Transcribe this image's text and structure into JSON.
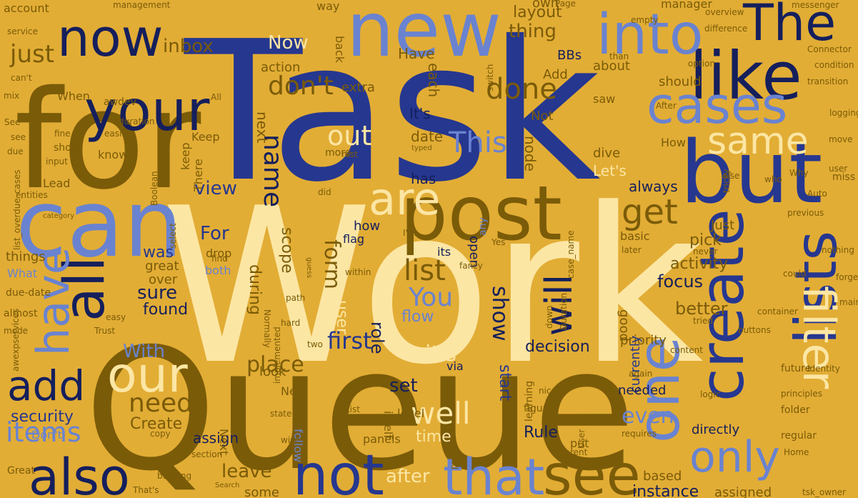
{
  "palette": {
    "background": "#E2AD35",
    "navy": "#26378F",
    "dark_navy": "#151F5C",
    "olive": "#7A5B08",
    "light_blue": "#6A83D0",
    "cream": "#FCE6A4",
    "tan": "#C58F28",
    "faint": "#C99A31"
  },
  "words": [
    {
      "text": "Task",
      "color": "navy"
    },
    {
      "text": "Work",
      "color": "cream"
    },
    {
      "text": "Queue",
      "color": "olive"
    },
    {
      "text": "for",
      "color": "olive"
    },
    {
      "text": "can",
      "color": "light_blue"
    },
    {
      "text": "new",
      "color": "light_blue"
    },
    {
      "text": "your",
      "color": "dark_navy"
    },
    {
      "text": "now",
      "color": "dark_navy"
    },
    {
      "text": "post",
      "color": "olive"
    },
    {
      "text": "but",
      "color": "navy"
    },
    {
      "text": "like",
      "color": "dark_navy"
    },
    {
      "text": "The",
      "color": "dark_navy"
    },
    {
      "text": "into",
      "color": "light_blue"
    },
    {
      "text": "cases",
      "color": "light_blue"
    },
    {
      "text": "all",
      "color": "dark_navy"
    },
    {
      "text": "create",
      "color": "navy"
    },
    {
      "text": "lists",
      "color": "navy"
    },
    {
      "text": "one",
      "color": "light_blue"
    },
    {
      "text": "filter",
      "color": "cream"
    },
    {
      "text": "only",
      "color": "light_blue"
    },
    {
      "text": "see",
      "color": "olive"
    },
    {
      "text": "that",
      "color": "light_blue"
    },
    {
      "text": "not",
      "color": "navy"
    },
    {
      "text": "also",
      "color": "dark_navy"
    },
    {
      "text": "our",
      "color": "cream"
    },
    {
      "text": "add",
      "color": "dark_navy"
    },
    {
      "text": "have",
      "color": "light_blue"
    },
    {
      "text": "are",
      "color": "cream"
    },
    {
      "text": "get",
      "color": "olive"
    },
    {
      "text": "will",
      "color": "dark_navy"
    },
    {
      "text": "same",
      "color": "cream"
    },
    {
      "text": "done",
      "color": "olive"
    },
    {
      "text": "This",
      "color": "light_blue"
    },
    {
      "text": "out",
      "color": "cream"
    },
    {
      "text": "don't",
      "color": "olive"
    },
    {
      "text": "just",
      "color": "olive"
    },
    {
      "text": "items",
      "color": "light_blue"
    },
    {
      "text": "need",
      "color": "olive"
    },
    {
      "text": "list",
      "color": "olive"
    },
    {
      "text": "You",
      "color": "light_blue"
    },
    {
      "text": "well",
      "color": "cream"
    },
    {
      "text": "first",
      "color": "navy"
    },
    {
      "text": "name",
      "color": "dark_navy"
    },
    {
      "text": "even",
      "color": "light_blue"
    },
    {
      "text": "place",
      "color": "olive"
    },
    {
      "text": "form",
      "color": "olive"
    },
    {
      "text": "show",
      "color": "dark_navy"
    },
    {
      "text": "it's",
      "color": "cream"
    },
    {
      "text": "after",
      "color": "cream"
    },
    {
      "text": "leave",
      "color": "olive"
    },
    {
      "text": "inbox",
      "color": "olive"
    },
    {
      "text": "thing",
      "color": "olive"
    },
    {
      "text": "layout",
      "color": "olive"
    },
    {
      "text": "Now",
      "color": "cream"
    },
    {
      "text": "With",
      "color": "light_blue"
    },
    {
      "text": "For",
      "color": "navy"
    },
    {
      "text": "view",
      "color": "navy"
    },
    {
      "text": "sure",
      "color": "dark_navy"
    },
    {
      "text": "found",
      "color": "dark_navy"
    },
    {
      "text": "was",
      "color": "navy"
    },
    {
      "text": "focus",
      "color": "dark_navy"
    },
    {
      "text": "better",
      "color": "olive"
    },
    {
      "text": "activity",
      "color": "olive"
    },
    {
      "text": "pick",
      "color": "olive"
    },
    {
      "text": "decision",
      "color": "dark_navy"
    },
    {
      "text": "role",
      "color": "dark_navy"
    },
    {
      "text": "start",
      "color": "navy"
    },
    {
      "text": "set",
      "color": "dark_navy"
    },
    {
      "text": "time",
      "color": "cream"
    },
    {
      "text": "Rule",
      "color": "dark_navy"
    },
    {
      "text": "flow",
      "color": "light_blue"
    },
    {
      "text": "user",
      "color": "cream"
    },
    {
      "text": "during",
      "color": "olive"
    },
    {
      "text": "scope",
      "color": "olive"
    },
    {
      "text": "security",
      "color": "navy"
    },
    {
      "text": "Create",
      "color": "olive"
    },
    {
      "text": "assign",
      "color": "dark_navy"
    },
    {
      "text": "instance",
      "color": "dark_navy"
    },
    {
      "text": "some",
      "color": "olive"
    },
    {
      "text": "assigned",
      "color": "olive"
    },
    {
      "text": "based",
      "color": "olive"
    },
    {
      "text": "always",
      "color": "dark_navy"
    },
    {
      "text": "Let's",
      "color": "cream"
    },
    {
      "text": "node",
      "color": "olive"
    },
    {
      "text": "date",
      "color": "olive"
    },
    {
      "text": "has",
      "color": "dark_navy"
    },
    {
      "text": "It's",
      "color": "dark_navy"
    },
    {
      "text": "next",
      "color": "olive"
    },
    {
      "text": "Have",
      "color": "olive"
    },
    {
      "text": "action",
      "color": "olive"
    },
    {
      "text": "extra",
      "color": "olive"
    },
    {
      "text": "each",
      "color": "olive"
    },
    {
      "text": "Not",
      "color": "olive"
    },
    {
      "text": "Add",
      "color": "olive"
    },
    {
      "text": "BBs",
      "color": "dark_navy"
    },
    {
      "text": "own",
      "color": "olive"
    },
    {
      "text": "about",
      "color": "olive"
    },
    {
      "text": "saw",
      "color": "olive"
    },
    {
      "text": "should",
      "color": "olive"
    },
    {
      "text": "How",
      "color": "olive"
    },
    {
      "text": "dive",
      "color": "olive"
    },
    {
      "text": "Just",
      "color": "olive"
    },
    {
      "text": "basic",
      "color": "olive"
    },
    {
      "text": "good",
      "color": "olive"
    },
    {
      "text": "priority",
      "color": "olive"
    },
    {
      "text": "currently",
      "color": "navy"
    },
    {
      "text": "needed",
      "color": "dark_navy"
    },
    {
      "text": "directly",
      "color": "dark_navy"
    },
    {
      "text": "keep",
      "color": "olive"
    },
    {
      "text": "Keep",
      "color": "olive"
    },
    {
      "text": "There",
      "color": "olive"
    },
    {
      "text": "drop",
      "color": "olive"
    },
    {
      "text": "both",
      "color": "light_blue"
    },
    {
      "text": "great",
      "color": "olive"
    },
    {
      "text": "over",
      "color": "olive"
    },
    {
      "text": "things",
      "color": "olive"
    },
    {
      "text": "What",
      "color": "light_blue"
    },
    {
      "text": "When",
      "color": "olive"
    },
    {
      "text": "awdev",
      "color": "olive"
    },
    {
      "text": "Lead",
      "color": "olive"
    },
    {
      "text": "know",
      "color": "olive"
    },
    {
      "text": "more",
      "color": "olive"
    },
    {
      "text": "how",
      "color": "dark_navy"
    },
    {
      "text": "flag",
      "color": "dark_navy"
    },
    {
      "text": "its",
      "color": "dark_navy"
    },
    {
      "text": "open",
      "color": "dark_navy"
    },
    {
      "text": "via",
      "color": "dark_navy"
    },
    {
      "text": "look",
      "color": "olive"
    },
    {
      "text": "follow",
      "color": "light_blue"
    },
    {
      "text": "New",
      "color": "olive"
    },
    {
      "text": "Next",
      "color": "olive"
    },
    {
      "text": "Don't",
      "color": "light_blue"
    },
    {
      "text": "level",
      "color": "olive"
    },
    {
      "text": "panels",
      "color": "olive"
    },
    {
      "text": "itself",
      "color": "olive"
    },
    {
      "text": "put",
      "color": "olive"
    },
    {
      "text": "way",
      "color": "olive"
    },
    {
      "text": "back",
      "color": "olive"
    },
    {
      "text": "account",
      "color": "olive"
    },
    {
      "text": "service",
      "color": "olive"
    },
    {
      "text": "management",
      "color": "olive"
    },
    {
      "text": "manager",
      "color": "olive"
    },
    {
      "text": "messenger",
      "color": "olive"
    },
    {
      "text": "overview",
      "color": "olive"
    },
    {
      "text": "difference",
      "color": "olive"
    },
    {
      "text": "Connector",
      "color": "olive"
    },
    {
      "text": "condition",
      "color": "olive"
    },
    {
      "text": "transition",
      "color": "olive"
    },
    {
      "text": "Why",
      "color": "olive"
    },
    {
      "text": "miss",
      "color": "olive"
    },
    {
      "text": "previous",
      "color": "olive"
    },
    {
      "text": "nothing",
      "color": "olive"
    },
    {
      "text": "main",
      "color": "olive"
    },
    {
      "text": "future",
      "color": "olive"
    },
    {
      "text": "Identity",
      "color": "olive"
    },
    {
      "text": "principles",
      "color": "olive"
    },
    {
      "text": "folder",
      "color": "olive"
    },
    {
      "text": "regular",
      "color": "olive"
    },
    {
      "text": "Home",
      "color": "olive"
    },
    {
      "text": "learning",
      "color": "olive"
    },
    {
      "text": "requires",
      "color": "olive"
    },
    {
      "text": "logic",
      "color": "olive"
    },
    {
      "text": "copy",
      "color": "olive"
    },
    {
      "text": "building",
      "color": "olive"
    },
    {
      "text": "Great",
      "color": "olive"
    },
    {
      "text": "That's",
      "color": "olive"
    },
    {
      "text": "tsk_owner",
      "color": "olive"
    },
    {
      "text": "mind",
      "color": "olive"
    },
    {
      "text": "see",
      "color": "olive"
    },
    {
      "text": "due-date",
      "color": "olive"
    },
    {
      "text": "almost",
      "color": "olive"
    },
    {
      "text": "mode",
      "color": "olive"
    },
    {
      "text": "entities",
      "color": "olive"
    },
    {
      "text": "duration",
      "color": "olive"
    },
    {
      "text": "mix",
      "color": "olive"
    },
    {
      "text": "can't",
      "color": "olive"
    },
    {
      "text": "due",
      "color": "olive"
    },
    {
      "text": "fine",
      "color": "olive"
    },
    {
      "text": "shoot",
      "color": "olive"
    },
    {
      "text": "input",
      "color": "olive"
    },
    {
      "text": "easier",
      "color": "olive"
    },
    {
      "text": "find",
      "color": "olive"
    },
    {
      "text": "user",
      "color": "olive"
    },
    {
      "text": "forget",
      "color": "olive"
    },
    {
      "text": "later",
      "color": "olive"
    },
    {
      "text": "never",
      "color": "olive"
    },
    {
      "text": "tried",
      "color": "olive"
    },
    {
      "text": "again",
      "color": "olive"
    },
    {
      "text": "content",
      "color": "olive"
    },
    {
      "text": "buttons",
      "color": "olive"
    },
    {
      "text": "container",
      "color": "olive"
    },
    {
      "text": "could",
      "color": "olive"
    },
    {
      "text": "fancy",
      "color": "olive"
    },
    {
      "text": "down",
      "color": "olive"
    },
    {
      "text": "Duration",
      "color": "olive"
    },
    {
      "text": "path",
      "color": "olive"
    },
    {
      "text": "hard",
      "color": "olive"
    },
    {
      "text": "easy",
      "color": "olive"
    },
    {
      "text": "Trust",
      "color": "olive"
    },
    {
      "text": "state",
      "color": "olive"
    },
    {
      "text": "implemented",
      "color": "olive"
    },
    {
      "text": "wise",
      "color": "olive"
    },
    {
      "text": "List",
      "color": "olive"
    },
    {
      "text": "section",
      "color": "olive"
    },
    {
      "text": "two",
      "color": "olive"
    },
    {
      "text": "select",
      "color": "olive"
    },
    {
      "text": "nice",
      "color": "olive"
    },
    {
      "text": "figure",
      "color": "olive"
    },
    {
      "text": "parent",
      "color": "olive"
    },
    {
      "text": "option",
      "color": "olive"
    },
    {
      "text": "than",
      "color": "olive"
    },
    {
      "text": "switch",
      "color": "olive"
    },
    {
      "text": "empty",
      "color": "olive"
    },
    {
      "text": "Page",
      "color": "olive"
    },
    {
      "text": "any",
      "color": "light_blue"
    },
    {
      "text": "who",
      "color": "olive"
    },
    {
      "text": "After",
      "color": "olive"
    },
    {
      "text": "move",
      "color": "olive"
    },
    {
      "text": "rest",
      "color": "olive"
    },
    {
      "text": "within",
      "color": "olive"
    },
    {
      "text": "did",
      "color": "olive"
    },
    {
      "text": "I'm",
      "color": "olive"
    },
    {
      "text": "Normally",
      "color": "olive"
    },
    {
      "text": "Yes",
      "color": "olive"
    },
    {
      "text": "else",
      "color": "olive"
    },
    {
      "text": "tricky",
      "color": "olive"
    },
    {
      "text": "Auto",
      "color": "olive"
    },
    {
      "text": "logging",
      "color": "olive"
    },
    {
      "text": "All",
      "color": "olive"
    },
    {
      "text": "See",
      "color": "olive"
    },
    {
      "text": "Boolean",
      "color": "olive"
    },
    {
      "text": "category",
      "color": "olive"
    },
    {
      "text": "typed",
      "color": "olive"
    },
    {
      "text": "User",
      "color": "olive"
    },
    {
      "text": "Search",
      "color": "olive"
    },
    {
      "text": "case_name",
      "color": "olive"
    },
    {
      "text": "list_overdue_cases",
      "color": "olive"
    },
    {
      "text": "awexpservices",
      "color": "olive"
    },
    {
      "text": "guess",
      "color": "olive"
    }
  ]
}
